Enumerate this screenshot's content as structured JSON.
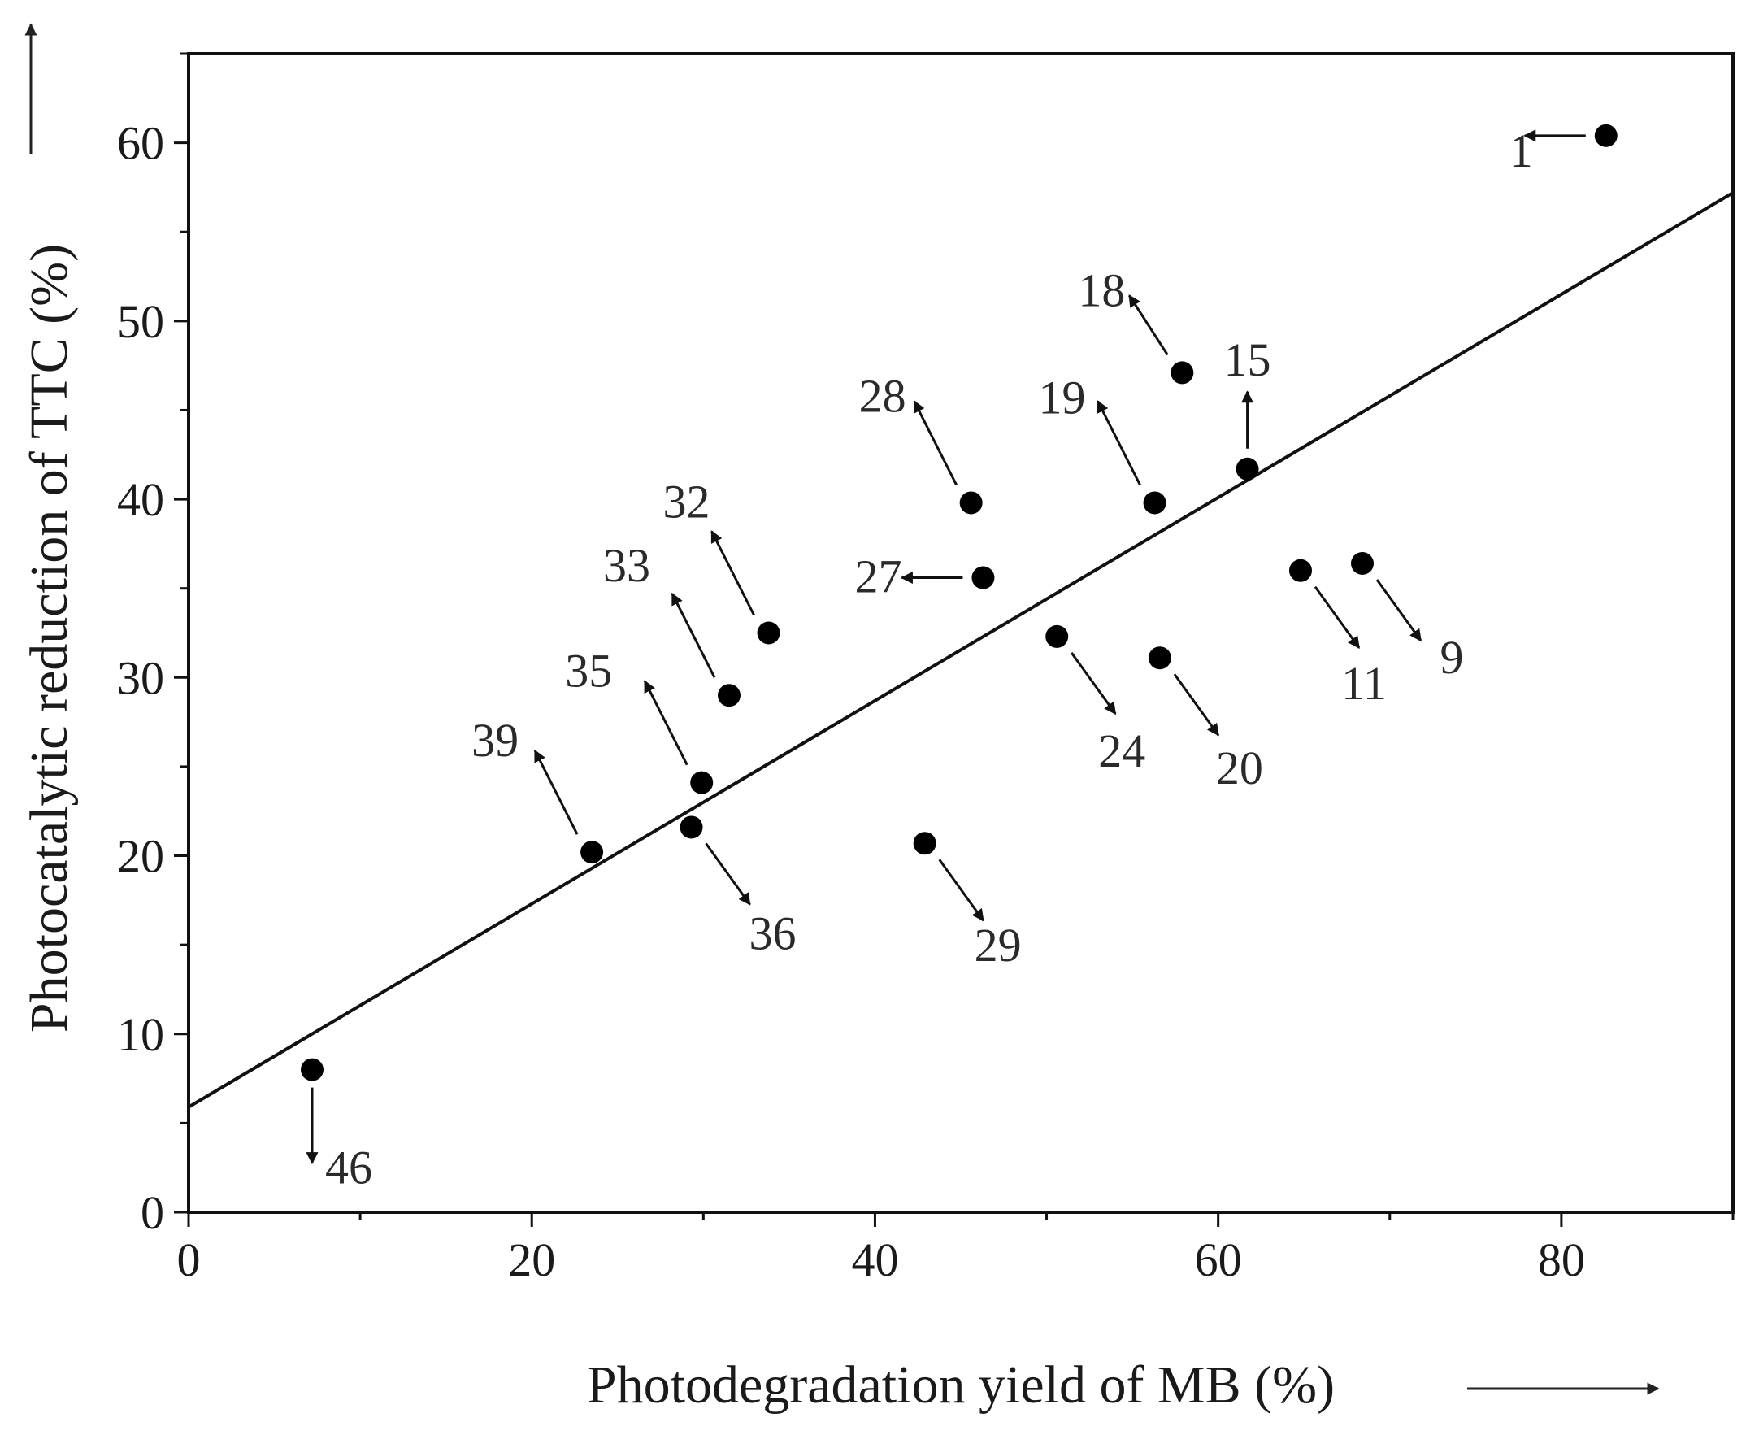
{
  "chart_data": {
    "type": "scatter",
    "title": "",
    "xlabel": "Photodegradation yield of MB (%)",
    "ylabel": "Photocatalytic reduction of TTC (%)",
    "xlim": [
      0,
      90
    ],
    "ylim": [
      0,
      65
    ],
    "xticks": [
      0,
      20,
      40,
      60,
      80
    ],
    "yticks": [
      0,
      10,
      20,
      30,
      40,
      50,
      60
    ],
    "grid": false,
    "fit_line": {
      "x": [
        0,
        90
      ],
      "y": [
        5.9,
        57.2
      ]
    },
    "points": [
      {
        "label": "1",
        "x": 82.6,
        "y": 60.4,
        "arrow": "left"
      },
      {
        "label": "9",
        "x": 68.4,
        "y": 36.4,
        "arrow": "down-right"
      },
      {
        "label": "11",
        "x": 64.8,
        "y": 36.0,
        "arrow": "down-right"
      },
      {
        "label": "15",
        "x": 61.7,
        "y": 41.7,
        "arrow": "up"
      },
      {
        "label": "18",
        "x": 57.9,
        "y": 47.1,
        "arrow": "up-left"
      },
      {
        "label": "19",
        "x": 56.3,
        "y": 39.8,
        "arrow": "up-left"
      },
      {
        "label": "20",
        "x": 56.6,
        "y": 31.1,
        "arrow": "down-right"
      },
      {
        "label": "24",
        "x": 50.6,
        "y": 32.3,
        "arrow": "down-right"
      },
      {
        "label": "27",
        "x": 46.3,
        "y": 35.6,
        "arrow": "left"
      },
      {
        "label": "28",
        "x": 45.6,
        "y": 39.8,
        "arrow": "up-left"
      },
      {
        "label": "29",
        "x": 42.9,
        "y": 20.7,
        "arrow": "down-right"
      },
      {
        "label": "32",
        "x": 33.8,
        "y": 32.5,
        "arrow": "up-left"
      },
      {
        "label": "33",
        "x": 31.5,
        "y": 29.0,
        "arrow": "up-left"
      },
      {
        "label": "35",
        "x": 29.9,
        "y": 24.1,
        "arrow": "up-left"
      },
      {
        "label": "36",
        "x": 29.3,
        "y": 21.6,
        "arrow": "down-right"
      },
      {
        "label": "39",
        "x": 23.5,
        "y": 20.2,
        "arrow": "up-left"
      },
      {
        "label": "46",
        "x": 7.2,
        "y": 8.0,
        "arrow": "down"
      }
    ]
  }
}
